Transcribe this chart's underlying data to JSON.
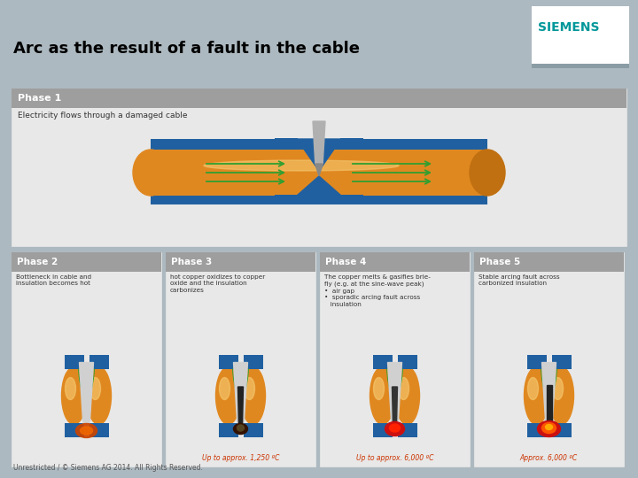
{
  "bg_color": "#adb9c0",
  "title": "Arc as the result of a fault in the cable",
  "title_color": "#000000",
  "title_fontsize": 13,
  "siemens_text": "SIEMENS",
  "siemens_color": "#00979a",
  "siemens_box_color": "#ffffff",
  "footer_text": "Unrestricted / © Siemens AG 2014. All Rights Reserved.",
  "phase1_label": "Phase 1",
  "phase1_desc": "Electricity flows through a damaged cable",
  "phase2_label": "Phase 2",
  "phase2_desc": "Bottleneck in cable and\ninsulation becomes hot",
  "phase3_label": "Phase 3",
  "phase3_desc": "hot copper oxidizes to copper\noxide and the insulation\ncarbonizes",
  "phase3_temp": "Up to approx. 1,250 ºC",
  "phase4_label": "Phase 4",
  "phase4_desc": "The copper melts & gasifies brie-\nfly (e.g. at the sine-wave peak)\n•  air gap\n•  sporadic arcing fault across\n   insulation",
  "phase4_temp": "Up to approx. 6,000 ºC",
  "phase5_label": "Phase 5",
  "phase5_desc": "Stable arcing fault across\ncarbonized insulation",
  "phase5_temp": "Approx. 6,000 ºC",
  "panel_bg": "#e8e8e8",
  "phase_header_bg": "#9e9e9e",
  "phase_label_color": "#ffffff",
  "cable_orange": "#e08820",
  "cable_blue": "#2060a0",
  "cable_green": "#30a030",
  "cable_light": "#f5c870",
  "arc_red": "#cc1010",
  "arc_orange": "#ff5500",
  "temp_color": "#cc3300"
}
